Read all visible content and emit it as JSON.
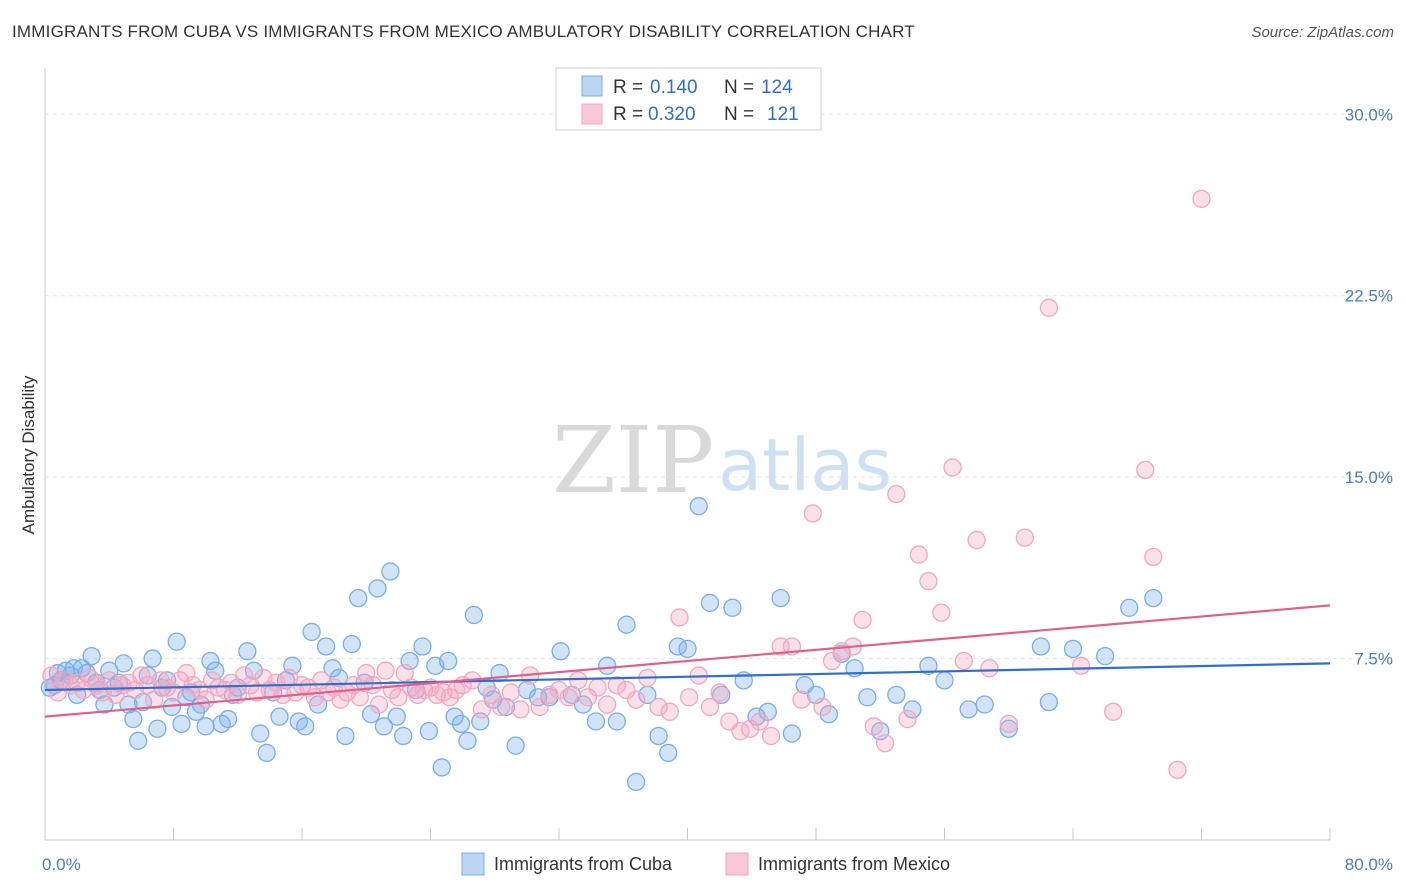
{
  "header": {
    "title": "IMMIGRANTS FROM CUBA VS IMMIGRANTS FROM MEXICO AMBULATORY DISABILITY CORRELATION CHART",
    "source": "Source: ZipAtlas.com"
  },
  "watermark": {
    "zip": "ZIP",
    "atlas": "atlas"
  },
  "chart_data": {
    "type": "scatter",
    "title": "IMMIGRANTS FROM CUBA VS IMMIGRANTS FROM MEXICO AMBULATORY DISABILITY CORRELATION CHART",
    "xlabel": "",
    "ylabel": "Ambulatory Disability",
    "xlim": [
      0,
      80
    ],
    "ylim": [
      0,
      31.5
    ],
    "x_tick_labels": [
      "0.0%",
      "80.0%"
    ],
    "y_ticks": [
      7.5,
      15.0,
      22.5,
      30.0
    ],
    "y_tick_labels": [
      "7.5%",
      "15.0%",
      "22.5%",
      "30.0%"
    ],
    "grid": true,
    "legend": {
      "position": "top-center",
      "entries": [
        {
          "r_label": "R =",
          "r_value": "0.140",
          "n_label": "N =",
          "n_value": "124"
        },
        {
          "r_label": "R =",
          "r_value": "0.320",
          "n_label": "N =",
          "n_value": "121"
        }
      ]
    },
    "series": [
      {
        "name": "Immigrants from Cuba",
        "color": "#7aaee8",
        "line_color": "#2f6fd0",
        "trend": {
          "x": [
            0,
            80
          ],
          "y": [
            6.2,
            7.3
          ]
        },
        "points": [
          [
            0.3,
            6.3
          ],
          [
            0.6,
            6.4
          ],
          [
            0.8,
            6.9
          ],
          [
            1.0,
            6.6
          ],
          [
            1.3,
            7.0
          ],
          [
            1.6,
            6.8
          ],
          [
            1.8,
            7.1
          ],
          [
            2.0,
            6.0
          ],
          [
            2.3,
            7.1
          ],
          [
            2.6,
            6.9
          ],
          [
            2.9,
            7.6
          ],
          [
            3.2,
            6.5
          ],
          [
            3.4,
            6.2
          ],
          [
            3.7,
            5.6
          ],
          [
            4.0,
            7.0
          ],
          [
            4.3,
            6.3
          ],
          [
            4.6,
            6.5
          ],
          [
            4.9,
            7.3
          ],
          [
            5.2,
            5.6
          ],
          [
            5.5,
            5.0
          ],
          [
            5.8,
            4.1
          ],
          [
            6.1,
            5.7
          ],
          [
            6.4,
            6.8
          ],
          [
            6.7,
            7.5
          ],
          [
            7.0,
            4.6
          ],
          [
            7.3,
            6.3
          ],
          [
            7.6,
            6.6
          ],
          [
            7.9,
            5.5
          ],
          [
            8.2,
            8.2
          ],
          [
            8.5,
            4.8
          ],
          [
            8.8,
            5.9
          ],
          [
            9.1,
            6.1
          ],
          [
            9.4,
            5.3
          ],
          [
            9.7,
            5.6
          ],
          [
            10.0,
            4.7
          ],
          [
            10.3,
            7.4
          ],
          [
            10.6,
            7.0
          ],
          [
            11.0,
            4.8
          ],
          [
            11.4,
            5.0
          ],
          [
            11.7,
            6.0
          ],
          [
            12.0,
            6.3
          ],
          [
            12.6,
            7.8
          ],
          [
            13.0,
            7.0
          ],
          [
            13.4,
            4.4
          ],
          [
            13.8,
            3.6
          ],
          [
            14.2,
            6.1
          ],
          [
            14.6,
            5.1
          ],
          [
            15.0,
            6.6
          ],
          [
            15.4,
            7.2
          ],
          [
            15.8,
            4.9
          ],
          [
            16.2,
            4.7
          ],
          [
            16.6,
            8.6
          ],
          [
            17.0,
            5.6
          ],
          [
            17.5,
            8.0
          ],
          [
            17.9,
            7.1
          ],
          [
            18.3,
            6.7
          ],
          [
            18.7,
            4.3
          ],
          [
            19.1,
            8.1
          ],
          [
            19.5,
            10.0
          ],
          [
            19.9,
            6.5
          ],
          [
            20.3,
            5.2
          ],
          [
            20.7,
            10.4
          ],
          [
            21.1,
            4.7
          ],
          [
            21.5,
            11.1
          ],
          [
            21.9,
            5.1
          ],
          [
            22.3,
            4.3
          ],
          [
            22.7,
            7.4
          ],
          [
            23.1,
            6.2
          ],
          [
            23.5,
            8.0
          ],
          [
            23.9,
            4.5
          ],
          [
            24.3,
            7.2
          ],
          [
            24.7,
            3.0
          ],
          [
            25.1,
            7.4
          ],
          [
            25.5,
            5.1
          ],
          [
            25.9,
            4.8
          ],
          [
            26.3,
            4.1
          ],
          [
            26.7,
            9.3
          ],
          [
            27.1,
            4.9
          ],
          [
            27.5,
            6.3
          ],
          [
            27.9,
            5.8
          ],
          [
            28.3,
            6.9
          ],
          [
            28.7,
            5.5
          ],
          [
            29.3,
            3.9
          ],
          [
            30.0,
            6.2
          ],
          [
            30.7,
            5.9
          ],
          [
            31.4,
            5.9
          ],
          [
            32.1,
            7.8
          ],
          [
            32.8,
            6.0
          ],
          [
            33.5,
            5.6
          ],
          [
            34.3,
            4.9
          ],
          [
            35.0,
            7.2
          ],
          [
            35.6,
            4.9
          ],
          [
            36.2,
            8.9
          ],
          [
            36.8,
            2.4
          ],
          [
            37.5,
            6.0
          ],
          [
            38.2,
            4.3
          ],
          [
            38.8,
            3.6
          ],
          [
            39.4,
            8.0
          ],
          [
            40.0,
            7.9
          ],
          [
            40.7,
            13.8
          ],
          [
            41.4,
            9.8
          ],
          [
            42.1,
            6.0
          ],
          [
            42.8,
            9.6
          ],
          [
            43.5,
            6.6
          ],
          [
            44.3,
            5.1
          ],
          [
            45.0,
            5.3
          ],
          [
            45.8,
            10.0
          ],
          [
            46.5,
            4.4
          ],
          [
            47.3,
            6.4
          ],
          [
            48.0,
            6.0
          ],
          [
            48.8,
            5.2
          ],
          [
            49.6,
            7.7
          ],
          [
            50.4,
            7.1
          ],
          [
            51.2,
            5.9
          ],
          [
            52.0,
            4.5
          ],
          [
            53.0,
            6.0
          ],
          [
            54.0,
            5.4
          ],
          [
            55.0,
            7.2
          ],
          [
            56.0,
            6.6
          ],
          [
            57.5,
            5.4
          ],
          [
            58.5,
            5.6
          ],
          [
            60.0,
            4.6
          ],
          [
            62.0,
            8.0
          ],
          [
            64.0,
            7.9
          ],
          [
            66.0,
            7.6
          ],
          [
            67.5,
            9.6
          ],
          [
            69.0,
            10.0
          ],
          [
            62.5,
            5.7
          ]
        ]
      },
      {
        "name": "Immigrants from Mexico",
        "color": "#f4a6c0",
        "line_color": "#e0608c",
        "trend": {
          "x": [
            0,
            80
          ],
          "y": [
            5.1,
            9.7
          ]
        },
        "points": [
          [
            0.4,
            6.8
          ],
          [
            0.8,
            6.1
          ],
          [
            1.2,
            6.6
          ],
          [
            1.6,
            6.4
          ],
          [
            2.0,
            6.5
          ],
          [
            2.4,
            6.2
          ],
          [
            2.8,
            6.7
          ],
          [
            3.2,
            6.4
          ],
          [
            3.6,
            6.1
          ],
          [
            4.0,
            6.6
          ],
          [
            4.4,
            6.0
          ],
          [
            4.8,
            6.4
          ],
          [
            5.2,
            6.5
          ],
          [
            5.6,
            6.2
          ],
          [
            6.0,
            6.8
          ],
          [
            6.4,
            6.4
          ],
          [
            6.8,
            5.8
          ],
          [
            7.2,
            6.6
          ],
          [
            7.6,
            6.3
          ],
          [
            8.0,
            6.1
          ],
          [
            8.4,
            6.6
          ],
          [
            8.8,
            6.9
          ],
          [
            9.2,
            6.4
          ],
          [
            9.6,
            6.2
          ],
          [
            10.0,
            5.8
          ],
          [
            10.4,
            6.6
          ],
          [
            10.8,
            6.3
          ],
          [
            11.2,
            6.2
          ],
          [
            11.6,
            6.5
          ],
          [
            12.0,
            6.0
          ],
          [
            12.4,
            6.8
          ],
          [
            12.8,
            6.4
          ],
          [
            13.2,
            6.1
          ],
          [
            13.6,
            6.7
          ],
          [
            14.0,
            6.2
          ],
          [
            14.4,
            6.5
          ],
          [
            14.8,
            6.0
          ],
          [
            15.2,
            6.7
          ],
          [
            15.6,
            6.1
          ],
          [
            16.0,
            6.4
          ],
          [
            16.4,
            6.3
          ],
          [
            16.8,
            5.9
          ],
          [
            17.2,
            6.6
          ],
          [
            17.6,
            6.1
          ],
          [
            18.0,
            6.3
          ],
          [
            18.4,
            5.8
          ],
          [
            18.8,
            6.1
          ],
          [
            19.2,
            6.4
          ],
          [
            19.6,
            5.9
          ],
          [
            20.0,
            6.9
          ],
          [
            20.4,
            6.4
          ],
          [
            20.8,
            5.6
          ],
          [
            21.2,
            7.0
          ],
          [
            21.6,
            6.2
          ],
          [
            22.0,
            5.9
          ],
          [
            22.4,
            6.9
          ],
          [
            22.8,
            6.3
          ],
          [
            23.2,
            6.0
          ],
          [
            23.6,
            6.2
          ],
          [
            24.0,
            6.3
          ],
          [
            24.4,
            6.0
          ],
          [
            24.8,
            6.1
          ],
          [
            25.2,
            5.9
          ],
          [
            25.6,
            6.2
          ],
          [
            26.0,
            6.4
          ],
          [
            26.6,
            6.6
          ],
          [
            27.2,
            5.4
          ],
          [
            27.8,
            6.0
          ],
          [
            28.4,
            5.5
          ],
          [
            29.0,
            6.1
          ],
          [
            29.6,
            5.4
          ],
          [
            30.2,
            6.8
          ],
          [
            30.8,
            5.5
          ],
          [
            31.4,
            6.0
          ],
          [
            32.0,
            6.2
          ],
          [
            32.6,
            5.9
          ],
          [
            33.2,
            6.6
          ],
          [
            33.8,
            5.9
          ],
          [
            34.4,
            6.3
          ],
          [
            35.0,
            5.6
          ],
          [
            35.6,
            6.4
          ],
          [
            36.2,
            6.2
          ],
          [
            36.8,
            5.8
          ],
          [
            37.5,
            6.7
          ],
          [
            38.2,
            5.5
          ],
          [
            38.9,
            5.3
          ],
          [
            39.5,
            9.2
          ],
          [
            40.1,
            5.9
          ],
          [
            40.7,
            6.8
          ],
          [
            41.4,
            5.5
          ],
          [
            42.0,
            6.1
          ],
          [
            42.6,
            4.9
          ],
          [
            43.3,
            4.5
          ],
          [
            43.9,
            4.6
          ],
          [
            44.5,
            4.9
          ],
          [
            45.2,
            4.3
          ],
          [
            45.8,
            8.0
          ],
          [
            46.5,
            8.0
          ],
          [
            47.1,
            5.8
          ],
          [
            47.8,
            13.5
          ],
          [
            48.4,
            5.5
          ],
          [
            49.0,
            7.4
          ],
          [
            49.6,
            7.8
          ],
          [
            50.3,
            8.0
          ],
          [
            50.9,
            9.1
          ],
          [
            51.6,
            4.7
          ],
          [
            52.3,
            4.0
          ],
          [
            53.0,
            14.3
          ],
          [
            53.7,
            5.0
          ],
          [
            54.4,
            11.8
          ],
          [
            55.0,
            10.7
          ],
          [
            55.8,
            9.4
          ],
          [
            56.5,
            15.4
          ],
          [
            57.2,
            7.4
          ],
          [
            58.0,
            12.4
          ],
          [
            58.8,
            7.1
          ],
          [
            60.0,
            4.8
          ],
          [
            61.0,
            12.5
          ],
          [
            62.5,
            22.0
          ],
          [
            64.5,
            7.2
          ],
          [
            66.5,
            5.3
          ],
          [
            69.0,
            11.7
          ],
          [
            68.5,
            15.3
          ],
          [
            72.0,
            26.5
          ],
          [
            70.5,
            2.9
          ]
        ]
      }
    ]
  },
  "bottom_legend": {
    "items": [
      {
        "label": "Immigrants from Cuba"
      },
      {
        "label": "Immigrants from Mexico"
      }
    ]
  }
}
